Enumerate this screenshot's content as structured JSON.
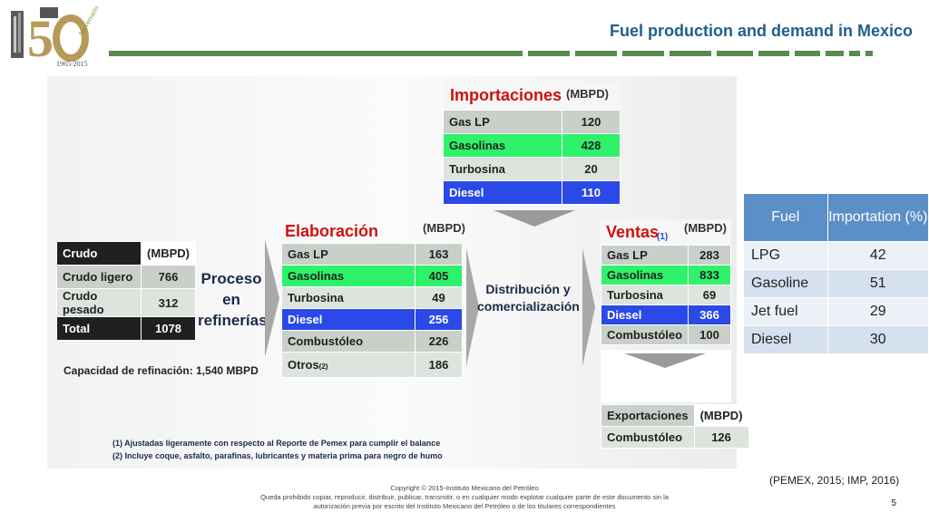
{
  "header": {
    "title": "Fuel production and demand in Mexico",
    "logo_years": "1965-2015",
    "logo_text": "Aniversario"
  },
  "slide": {
    "crudo": {
      "head": "Crudo",
      "unit": "(MBPD)",
      "rows": [
        {
          "label": "Crudo ligero",
          "value": "766"
        },
        {
          "label": "Crudo pesado",
          "value": "312"
        }
      ],
      "total_label": "Total",
      "total_value": "1078"
    },
    "capacity": "Capacidad de refinación: 1,540 MBPD",
    "proceso": [
      "Proceso",
      "en",
      "refinerías"
    ],
    "importaciones": {
      "head": "Importaciones",
      "unit": "(MBPD)",
      "rows": [
        {
          "label": "Gas LP",
          "value": "120"
        },
        {
          "label": "Gasolinas",
          "value": "428"
        },
        {
          "label": "Turbosina",
          "value": "20"
        },
        {
          "label": "Diesel",
          "value": "110"
        }
      ]
    },
    "elaboracion": {
      "head": "Elaboración",
      "unit": "(MBPD)",
      "rows": [
        {
          "label": "Gas LP",
          "value": "163"
        },
        {
          "label": "Gasolinas",
          "value": "405"
        },
        {
          "label": "Turbosina",
          "value": "49"
        },
        {
          "label": "Diesel",
          "value": "256"
        },
        {
          "label": "Combustóleo",
          "value": "226"
        },
        {
          "label": "Otros",
          "value": "186"
        }
      ],
      "otros_note": "(2)"
    },
    "distribucion": [
      "Distribución y",
      "comercialización"
    ],
    "ventas": {
      "head": "Ventas",
      "note": "(1)",
      "unit": "(MBPD)",
      "rows": [
        {
          "label": "Gas LP",
          "value": "283"
        },
        {
          "label": "Gasolinas",
          "value": "833"
        },
        {
          "label": "Turbosina",
          "value": "69"
        },
        {
          "label": "Diesel",
          "value": "366"
        },
        {
          "label": "Combustóleo",
          "value": "100"
        }
      ]
    },
    "exportaciones": {
      "head": "Exportaciones",
      "unit": "(MBPD)",
      "rows": [
        {
          "label": "Combustóleo",
          "value": "126"
        }
      ]
    },
    "notes": [
      "(1)   Ajustadas ligeramente con respecto al Reporte de Pemex para cumplir el balance",
      "(2)   Incluye  coque, asfalto, parafinas, lubricantes y materia prima para negro de humo"
    ]
  },
  "fuel_table": {
    "headers": [
      "Fuel",
      "Importation (%)"
    ],
    "rows": [
      {
        "fuel": "LPG",
        "value": "42"
      },
      {
        "fuel": "Gasoline",
        "value": "51"
      },
      {
        "fuel": "Jet fuel",
        "value": "29"
      },
      {
        "fuel": "Diesel",
        "value": "30"
      }
    ]
  },
  "citation": "(PEMEX, 2015; IMP, 2016)",
  "footer": {
    "line1": "Copyright © 2015-Instituto Mexicano del Petróleo",
    "line2": "Queda prohibido copiar, reproducir, distribuir, publicar, transmitir, o en cualquier modo explotar cualquier parte de este documento sin la",
    "line3": "autorización previa por escrito del Instituto Mexicano del Petróleo o de los titulares correspondientes"
  },
  "page_number": "5",
  "colors": {
    "title": "#1f5f8b",
    "header_bar": "#5a8a4e",
    "table_header": "#5b8fc7",
    "green_row": "#2ef26a",
    "blue_row": "#2a49e6",
    "red_heading": "#d01010"
  }
}
